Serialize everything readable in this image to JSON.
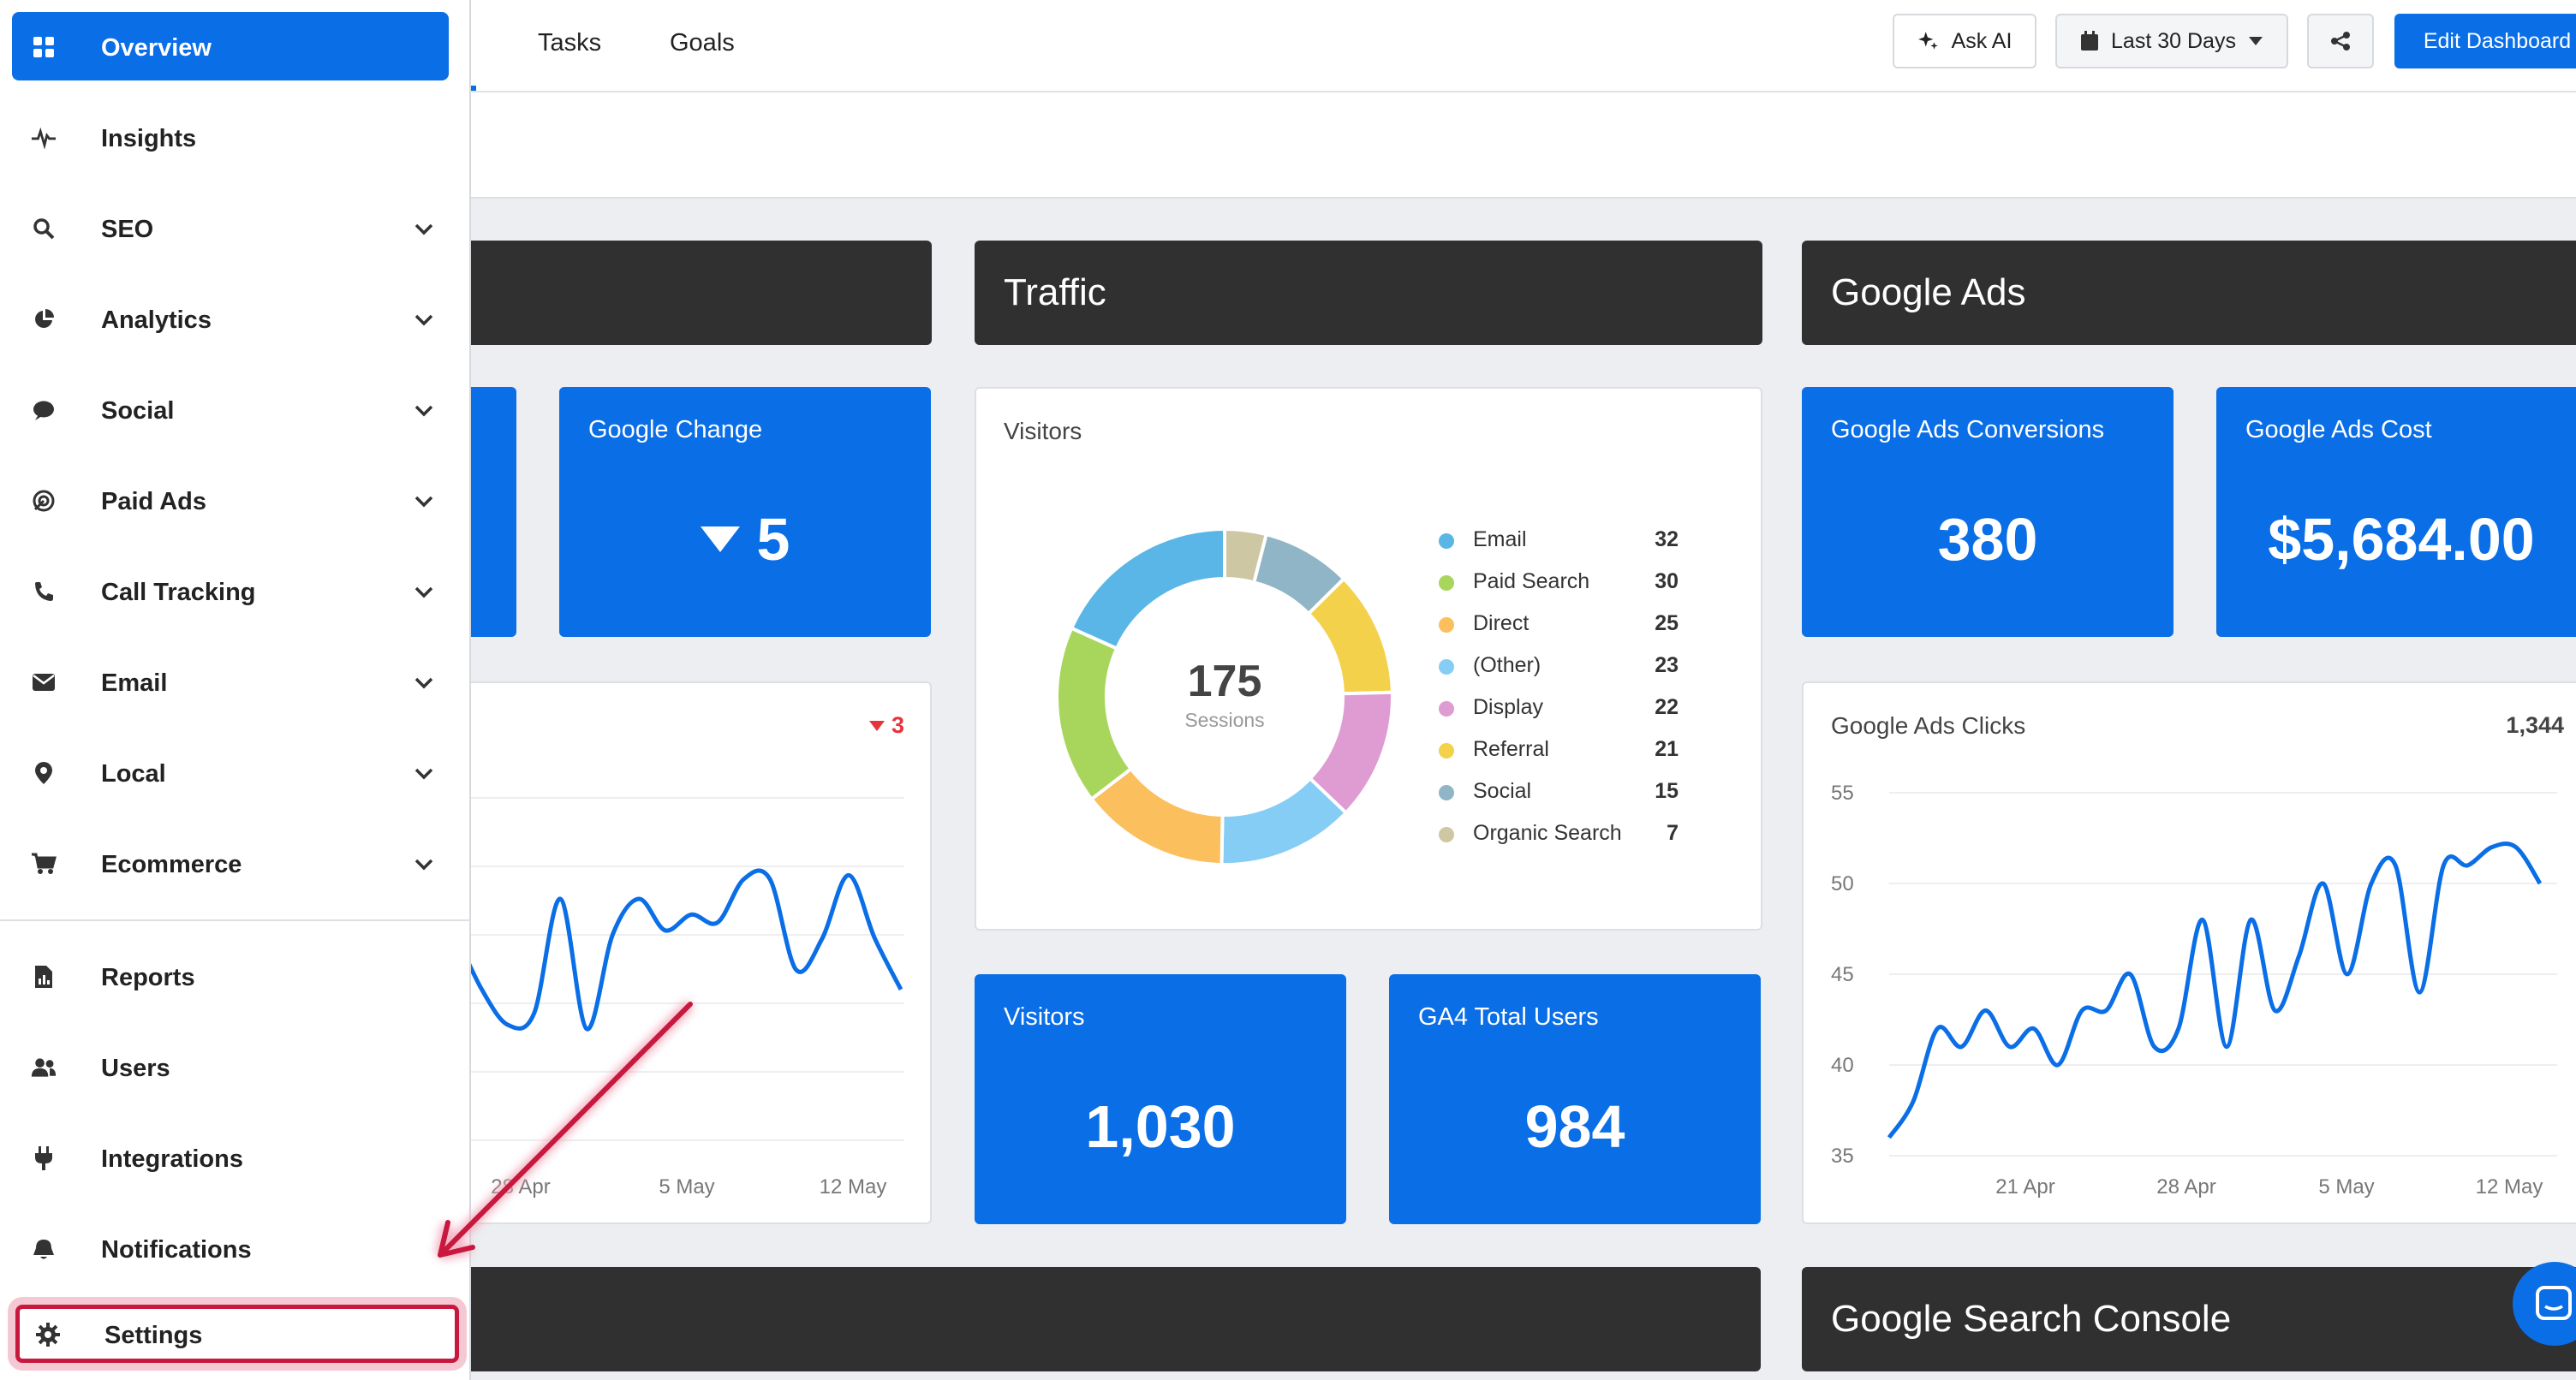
{
  "sidebar": {
    "items": [
      {
        "label": "Overview",
        "icon": "grid-icon",
        "active": true
      },
      {
        "label": "Insights",
        "icon": "pulse-icon"
      },
      {
        "label": "SEO",
        "icon": "search-icon",
        "expandable": true
      },
      {
        "label": "Analytics",
        "icon": "pie-chart-icon",
        "expandable": true
      },
      {
        "label": "Social",
        "icon": "chat-bubble-icon",
        "expandable": true
      },
      {
        "label": "Paid Ads",
        "icon": "target-icon",
        "expandable": true
      },
      {
        "label": "Call Tracking",
        "icon": "phone-icon",
        "expandable": true
      },
      {
        "label": "Email",
        "icon": "envelope-icon",
        "expandable": true
      },
      {
        "label": "Local",
        "icon": "map-pin-icon",
        "expandable": true
      },
      {
        "label": "Ecommerce",
        "icon": "cart-icon",
        "expandable": true
      },
      {
        "label": "Reports",
        "icon": "report-file-icon"
      },
      {
        "label": "Users",
        "icon": "users-icon"
      },
      {
        "label": "Integrations",
        "icon": "plug-icon"
      },
      {
        "label": "Notifications",
        "icon": "bell-icon"
      },
      {
        "label": "Settings",
        "icon": "gear-icon",
        "highlighted": true
      }
    ]
  },
  "topbar": {
    "tabs": [
      "Tasks",
      "Goals"
    ],
    "ask_ai": "Ask AI",
    "date_range": "Last 30 Days",
    "edit_dashboard": "Edit Dashboard"
  },
  "colors": {
    "accent": "#0a6ee6",
    "section_header": "#303030",
    "highlight": "#c8183e",
    "negative": "#e8333c"
  },
  "sections": {
    "traffic": "Traffic",
    "google_ads": "Google Ads",
    "google_search_console": "Google Search Console"
  },
  "left_column": {
    "google_change": {
      "title": "Google Change",
      "value": "5",
      "trend": "down"
    },
    "chart_badge": "3",
    "chart_x_labels": [
      "28 Apr",
      "5 May",
      "12 May"
    ]
  },
  "traffic": {
    "visitors_card": {
      "title": "Visitors",
      "center_value": "175",
      "center_label": "Sessions",
      "legend": [
        {
          "label": "Email",
          "value": "32",
          "color": "#5ab6e6"
        },
        {
          "label": "Paid Search",
          "value": "30",
          "color": "#a8d65c"
        },
        {
          "label": "Direct",
          "value": "25",
          "color": "#fbbf5e"
        },
        {
          "label": "(Other)",
          "value": "23",
          "color": "#86cdf5"
        },
        {
          "label": "Display",
          "value": "22",
          "color": "#de9cd2"
        },
        {
          "label": "Referral",
          "value": "21",
          "color": "#f3d14b"
        },
        {
          "label": "Social",
          "value": "15",
          "color": "#90b5c6"
        },
        {
          "label": "Organic Search",
          "value": "7",
          "color": "#cec7a4"
        }
      ]
    },
    "visitors_kpi": {
      "title": "Visitors",
      "value": "1,030"
    },
    "ga4_kpi": {
      "title": "GA4 Total Users",
      "value": "984"
    }
  },
  "google_ads": {
    "conversions": {
      "title": "Google Ads Conversions",
      "value": "380"
    },
    "cost": {
      "title": "Google Ads Cost",
      "value": "$5,684.00"
    },
    "clicks": {
      "title": "Google Ads Clicks",
      "total": "1,344"
    }
  },
  "chart_data": [
    {
      "type": "pie",
      "title": "Visitors",
      "categories": [
        "Email",
        "Paid Search",
        "Direct",
        "(Other)",
        "Display",
        "Referral",
        "Social",
        "Organic Search"
      ],
      "values": [
        32,
        30,
        25,
        23,
        22,
        21,
        15,
        7
      ],
      "total": 175
    },
    {
      "type": "line",
      "title": "Google Ads Clicks",
      "x_tick_labels": [
        "21 Apr",
        "28 Apr",
        "5 May",
        "12 May"
      ],
      "y_ticks": [
        35,
        40,
        45,
        50,
        55
      ],
      "ylim": [
        35,
        55
      ],
      "values": [
        36,
        38,
        42,
        41,
        43,
        41,
        42,
        40,
        43,
        43,
        45,
        41,
        42,
        48,
        41,
        48,
        43,
        46,
        50,
        45,
        50,
        51,
        44,
        51,
        51,
        52,
        52,
        50
      ],
      "grid": true
    },
    {
      "type": "line",
      "title": "",
      "x_tick_labels": [
        "28 Apr",
        "5 May",
        "12 May"
      ],
      "y_ticks": [],
      "ylim": [
        0,
        10
      ],
      "values": [
        6.1,
        4.7,
        3.8,
        4.1,
        7.0,
        3.7,
        6.1,
        7.0,
        6.2,
        6.6,
        6.4,
        7.5,
        7.5,
        5.2,
        6.0,
        7.6,
        6.0,
        4.7
      ]
    }
  ]
}
